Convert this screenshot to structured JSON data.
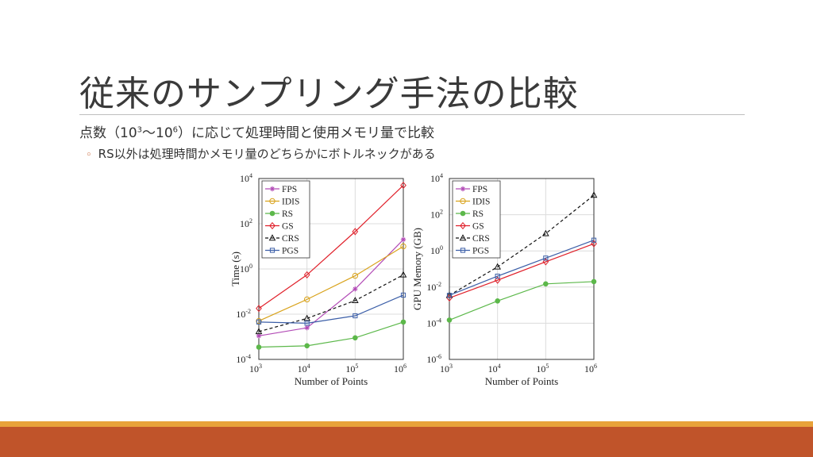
{
  "slide": {
    "title": "従来のサンプリング手法の比較",
    "bullet": {
      "prefix": "点数（10",
      "exp1": "3",
      "mid": "〜10",
      "exp2": "6",
      "suffix": "）に応じて処理時間と使用メモリ量で比較"
    },
    "sub_bullet_mark": "◦",
    "sub_bullet": "RS以外は処理時間かメモリ量のどちらかにボトルネックがある"
  },
  "colors": {
    "FPS": "#b24bb6",
    "IDIS": "#d9a31c",
    "RS": "#5cb84a",
    "GS": "#e0202a",
    "CRS": "#111111",
    "PGS": "#3c5fa8",
    "accent_orange": "#e8a23a",
    "accent_brown": "#c0542a"
  },
  "chart_data": [
    {
      "type": "line",
      "xlabel": "Number of Points",
      "ylabel": "Time (s)",
      "x": [
        1000,
        10000,
        100000,
        1000000
      ],
      "x_ticks": [
        {
          "base": "10",
          "exp": "3"
        },
        {
          "base": "10",
          "exp": "4"
        },
        {
          "base": "10",
          "exp": "5"
        },
        {
          "base": "10",
          "exp": "6"
        }
      ],
      "y_ticks": [
        {
          "base": "10",
          "exp": "-4"
        },
        {
          "base": "10",
          "exp": "-2"
        },
        {
          "base": "10",
          "exp": "0"
        },
        {
          "base": "10",
          "exp": "2"
        },
        {
          "base": "10",
          "exp": "4"
        }
      ],
      "xscale": "log",
      "yscale": "log",
      "xlim": [
        1000,
        1000000
      ],
      "ylim": [
        0.0001,
        10000
      ],
      "grid": true,
      "legend_position": "top-left",
      "series": [
        {
          "name": "FPS",
          "values": [
            0.0011,
            0.0025,
            0.13,
            20
          ],
          "marker": "star",
          "dashed": false
        },
        {
          "name": "IDIS",
          "values": [
            0.005,
            0.045,
            0.5,
            10
          ],
          "marker": "circle",
          "dashed": false
        },
        {
          "name": "RS",
          "values": [
            0.00035,
            0.0004,
            0.0009,
            0.0045
          ],
          "marker": "dot",
          "dashed": false
        },
        {
          "name": "GS",
          "values": [
            0.018,
            0.55,
            45,
            5000
          ],
          "marker": "diamond",
          "dashed": false
        },
        {
          "name": "CRS",
          "values": [
            0.0017,
            0.0065,
            0.04,
            0.55
          ],
          "marker": "triangle",
          "dashed": true
        },
        {
          "name": "PGS",
          "values": [
            0.0045,
            0.004,
            0.0085,
            0.07
          ],
          "marker": "square",
          "dashed": false
        }
      ]
    },
    {
      "type": "line",
      "xlabel": "Number of Points",
      "ylabel": "GPU Memory (GB)",
      "x": [
        1000,
        10000,
        100000,
        1000000
      ],
      "x_ticks": [
        {
          "base": "10",
          "exp": "3"
        },
        {
          "base": "10",
          "exp": "4"
        },
        {
          "base": "10",
          "exp": "5"
        },
        {
          "base": "10",
          "exp": "6"
        }
      ],
      "y_ticks": [
        {
          "base": "10",
          "exp": "-6"
        },
        {
          "base": "10",
          "exp": "-4"
        },
        {
          "base": "10",
          "exp": "-2"
        },
        {
          "base": "10",
          "exp": "0"
        },
        {
          "base": "10",
          "exp": "2"
        },
        {
          "base": "10",
          "exp": "4"
        }
      ],
      "xscale": "log",
      "yscale": "log",
      "xlim": [
        1000,
        1000000
      ],
      "ylim": [
        1e-06,
        10000
      ],
      "grid": true,
      "legend_position": "top-left",
      "series": [
        {
          "name": "FPS",
          "values": null,
          "marker": "star",
          "dashed": false
        },
        {
          "name": "IDIS",
          "values": null,
          "marker": "circle",
          "dashed": false
        },
        {
          "name": "RS",
          "values": [
            0.00015,
            0.0017,
            0.015,
            0.02
          ],
          "marker": "dot",
          "dashed": false
        },
        {
          "name": "GS",
          "values": [
            0.0025,
            0.024,
            0.25,
            2.5
          ],
          "marker": "diamond",
          "dashed": false
        },
        {
          "name": "CRS",
          "values": [
            0.0035,
            0.13,
            9,
            1200
          ],
          "marker": "triangle",
          "dashed": true
        },
        {
          "name": "PGS",
          "values": [
            0.0035,
            0.04,
            0.4,
            3.9
          ],
          "marker": "square",
          "dashed": false
        }
      ]
    }
  ]
}
